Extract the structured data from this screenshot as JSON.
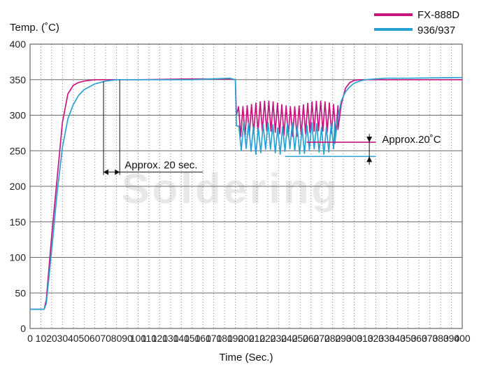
{
  "watermark": "Soldering",
  "chart_data": {
    "type": "line",
    "ylabel": "Temp. (˚C)",
    "xlabel": "Time (Sec.)",
    "xlim": [
      0,
      400
    ],
    "ylim": [
      0,
      400
    ],
    "x_ticks": [
      0,
      10,
      20,
      30,
      40,
      50,
      60,
      70,
      80,
      90,
      100,
      110,
      120,
      130,
      140,
      150,
      160,
      170,
      180,
      190,
      200,
      210,
      220,
      230,
      240,
      250,
      260,
      270,
      280,
      290,
      300,
      310,
      320,
      330,
      340,
      350,
      360,
      370,
      380,
      390,
      400
    ],
    "y_ticks": [
      0,
      50,
      100,
      150,
      200,
      250,
      300,
      350,
      400
    ],
    "grid": true,
    "legend_position": "top-right",
    "series": [
      {
        "name": "FX-888D",
        "color": "#c8157e",
        "x": [
          0,
          13,
          15,
          20,
          25,
          30,
          35,
          40,
          45,
          50,
          55,
          60,
          70,
          80,
          100,
          150,
          185,
          190,
          191
        ],
        "y": [
          27,
          27,
          40,
          130,
          210,
          290,
          330,
          342,
          346,
          348,
          349,
          350,
          350,
          350,
          350,
          351,
          351,
          350,
          300
        ],
        "oscillation": {
          "x_start": 191,
          "x_end": 285,
          "high": 320,
          "low": 270,
          "period": 4
        },
        "recovery": {
          "x": [
            285,
            288,
            292,
            296,
            300,
            305,
            310,
            320,
            330,
            350,
            400
          ],
          "y": [
            280,
            315,
            338,
            346,
            349,
            350,
            350,
            350,
            350,
            350,
            350
          ]
        }
      },
      {
        "name": "936/937",
        "color": "#2aa1d3",
        "x": [
          0,
          13,
          15,
          20,
          25,
          30,
          35,
          40,
          45,
          50,
          55,
          60,
          70,
          80,
          100,
          150,
          185,
          190,
          191
        ],
        "y": [
          27,
          27,
          35,
          110,
          190,
          255,
          295,
          315,
          328,
          336,
          340,
          344,
          348,
          350,
          350,
          350,
          352,
          350,
          285
        ],
        "oscillation": {
          "x_start": 191,
          "x_end": 282,
          "high": 290,
          "low": 245,
          "period": 4.5
        },
        "recovery": {
          "x": [
            282,
            284,
            286,
            288,
            292,
            296,
            300,
            305,
            310,
            320,
            330,
            350,
            400
          ],
          "y": [
            260,
            286,
            305,
            320,
            333,
            340,
            345,
            348,
            350,
            351,
            352,
            352,
            353
          ]
        }
      }
    ],
    "annotations": [
      {
        "text": "Approx. 20 sec.",
        "x_from": 68,
        "x_to": 83,
        "y": 220
      },
      {
        "text": "Approx.20˚C",
        "x_from": 236,
        "x_to": 320,
        "y_high": 262,
        "y_low": 242
      }
    ]
  }
}
